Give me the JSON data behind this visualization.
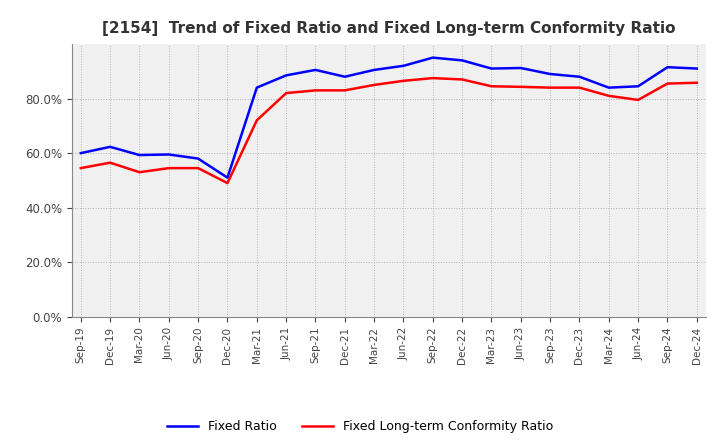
{
  "title": "[2154]  Trend of Fixed Ratio and Fixed Long-term Conformity Ratio",
  "x_labels": [
    "Sep-19",
    "Dec-19",
    "Mar-20",
    "Jun-20",
    "Sep-20",
    "Dec-20",
    "Mar-21",
    "Jun-21",
    "Sep-21",
    "Dec-21",
    "Mar-22",
    "Jun-22",
    "Sep-22",
    "Dec-22",
    "Mar-23",
    "Jun-23",
    "Sep-23",
    "Dec-23",
    "Mar-24",
    "Jun-24",
    "Sep-24",
    "Dec-24"
  ],
  "fixed_ratio": [
    0.6,
    0.623,
    0.593,
    0.595,
    0.58,
    0.51,
    0.84,
    0.885,
    0.905,
    0.88,
    0.905,
    0.92,
    0.95,
    0.94,
    0.91,
    0.912,
    0.89,
    0.88,
    0.84,
    0.845,
    0.915,
    0.91
  ],
  "fixed_lt_ratio": [
    0.545,
    0.565,
    0.53,
    0.545,
    0.545,
    0.49,
    0.72,
    0.82,
    0.83,
    0.83,
    0.85,
    0.865,
    0.875,
    0.87,
    0.845,
    0.843,
    0.84,
    0.84,
    0.81,
    0.795,
    0.855,
    0.858
  ],
  "ylim": [
    0.0,
    1.0
  ],
  "yticks": [
    0.0,
    0.2,
    0.4,
    0.6,
    0.8
  ],
  "fixed_ratio_color": "#0000FF",
  "fixed_lt_ratio_color": "#FF0000",
  "line_width": 1.8,
  "legend_fixed": "Fixed Ratio",
  "legend_fixed_lt": "Fixed Long-term Conformity Ratio",
  "background_color": "#ffffff",
  "plot_bg_color": "#f0f0f0",
  "grid_color": "#aaaaaa"
}
